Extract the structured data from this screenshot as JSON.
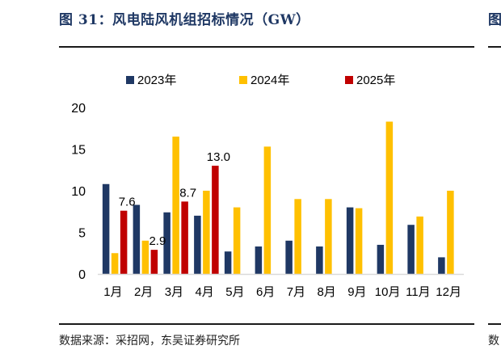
{
  "figure": {
    "title": "图 31：风电陆风机组招标情况（GW）",
    "source": "数据来源：采招网，东吴证券研究所",
    "next_panel_title_fragment": "图",
    "next_panel_source_fragment": "数"
  },
  "colors": {
    "title": "#1f3864",
    "axis": "#d9d9d9"
  },
  "chart_data": {
    "type": "bar",
    "title": "风电陆风机组招标情况（GW）",
    "xlabel": "",
    "ylabel": "",
    "ylim": [
      0,
      20
    ],
    "yticks": [
      "0",
      "5",
      "10",
      "15",
      "20"
    ],
    "grid": false,
    "legend_position": "top",
    "categories": [
      "1月",
      "2月",
      "3月",
      "4月",
      "5月",
      "6月",
      "7月",
      "8月",
      "9月",
      "10月",
      "11月",
      "12月"
    ],
    "series": [
      {
        "name": "2023年",
        "color": "#1f3864",
        "values": [
          10.8,
          8.3,
          7.4,
          7.0,
          2.7,
          3.3,
          4.0,
          3.3,
          8.0,
          3.5,
          5.9,
          2.0
        ]
      },
      {
        "name": "2024年",
        "color": "#ffc000",
        "values": [
          2.5,
          4.0,
          16.5,
          10.0,
          8.0,
          15.3,
          9.0,
          9.0,
          7.9,
          18.3,
          6.9,
          10.0
        ]
      },
      {
        "name": "2025年",
        "color": "#c00000",
        "values": [
          7.6,
          2.9,
          8.7,
          13.0,
          null,
          null,
          null,
          null,
          null,
          null,
          null,
          null
        ],
        "labels": [
          "7.6",
          "2.9",
          "8.7",
          "13.0",
          null,
          null,
          null,
          null,
          null,
          null,
          null,
          null
        ]
      }
    ]
  }
}
